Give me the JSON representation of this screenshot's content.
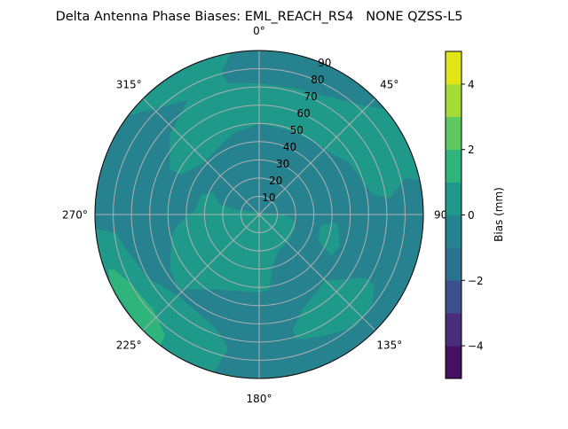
{
  "chart_data": {
    "type": "heatmap",
    "subtype": "polar filled contour",
    "title": "Delta Antenna Phase Biases: EML_REACH_RS4   NONE QZSS-L5",
    "angular_axis": {
      "direction": "clockwise",
      "zero_location": "top",
      "tick_labels": [
        "0°",
        "45°",
        "90°",
        "135°",
        "180°",
        "225°",
        "270°",
        "315°"
      ],
      "tick_values": [
        0,
        45,
        90,
        135,
        180,
        225,
        270,
        315
      ]
    },
    "radial_axis": {
      "range": [
        0,
        90
      ],
      "tick_values": [
        10,
        20,
        30,
        40,
        50,
        60,
        70,
        80,
        90
      ],
      "tick_labels": [
        "10",
        "20",
        "30",
        "40",
        "50",
        "60",
        "70",
        "80",
        "90"
      ],
      "label_angle": 22.5
    },
    "grid": true,
    "colorbar": {
      "label": "Bias (mm)",
      "levels": [
        -5,
        -4,
        -3,
        -2,
        -1,
        0,
        1,
        2,
        3,
        4,
        5
      ],
      "tick_values": [
        -4,
        -2,
        0,
        2,
        4
      ],
      "tick_labels": [
        "−4",
        "−2",
        "0",
        "2",
        "4"
      ],
      "colormap": "viridis",
      "band_colors": [
        "#45105f",
        "#472d7b",
        "#3b518b",
        "#2c718e",
        "#26828e",
        "#1f9a8a",
        "#2fb47c",
        "#5ec962",
        "#a5db36",
        "#e2e418"
      ]
    },
    "background_band": [
      -1,
      0
    ],
    "regions_note_units": "points are [azimuth_deg, radius]",
    "regions": [
      {
        "band": [
          0,
          1
        ],
        "points": [
          [
            307,
            90
          ],
          [
            320,
            90
          ],
          [
            335,
            90
          ],
          [
            350,
            90
          ],
          [
            347,
            84
          ],
          [
            345,
            80
          ],
          [
            347,
            74
          ],
          [
            0,
            72
          ],
          [
            16,
            72
          ],
          [
            33,
            76
          ],
          [
            45,
            84
          ],
          [
            50,
            90
          ],
          [
            60,
            90
          ],
          [
            70,
            90
          ],
          [
            78,
            90
          ],
          [
            76,
            83
          ],
          [
            83,
            72
          ],
          [
            80,
            63
          ],
          [
            60,
            57
          ],
          [
            50,
            52
          ],
          [
            37,
            50
          ],
          [
            20,
            49
          ],
          [
            0,
            50
          ],
          [
            353,
            48
          ],
          [
            343,
            47
          ],
          [
            329,
            43
          ],
          [
            313,
            41.5
          ],
          [
            297,
            48
          ],
          [
            297,
            55
          ],
          [
            312,
            66
          ],
          [
            328,
            74
          ],
          [
            308,
            89
          ]
        ]
      },
      {
        "band": [
          0,
          1
        ],
        "points": [
          [
            265,
            90
          ],
          [
            262.5,
            79
          ],
          [
            254.5,
            75
          ],
          [
            240,
            70
          ],
          [
            225,
            63
          ],
          [
            201,
            66.6
          ],
          [
            193,
            75.6
          ],
          [
            195,
            84.6
          ],
          [
            196,
            90
          ],
          [
            210,
            90
          ],
          [
            225,
            90
          ],
          [
            240,
            90
          ],
          [
            255,
            90
          ]
        ]
      },
      {
        "band": [
          1,
          2
        ],
        "points": [
          [
            249,
            85
          ],
          [
            242,
            80
          ],
          [
            228,
            78
          ],
          [
            218,
            84
          ],
          [
            217,
            90
          ],
          [
            230,
            90
          ],
          [
            245,
            90
          ],
          [
            250,
            88
          ]
        ]
      },
      {
        "band": [
          0,
          1
        ],
        "points": [
          [
            288.6,
            33.5
          ],
          [
            296,
            28
          ],
          [
            284.8,
            22.8
          ],
          [
            282,
            12.6
          ],
          [
            0,
            1
          ],
          [
            89,
            12
          ],
          [
            97,
            18.6
          ],
          [
            109.5,
            21.3
          ],
          [
            129,
            21.7
          ],
          [
            152.7,
            22.6
          ],
          [
            166.6,
            30.7
          ],
          [
            172.4,
            41.5
          ],
          [
            180,
            42.8
          ],
          [
            208,
            46.7
          ],
          [
            227.4,
            60.8
          ],
          [
            238.6,
            57.2
          ],
          [
            256,
            49.5
          ],
          [
            263,
            45
          ],
          [
            274.2,
            35.1
          ]
        ]
      },
      {
        "band": [
          0,
          1
        ],
        "points": [
          [
            99.2,
            34.3
          ],
          [
            96.3,
            43
          ],
          [
            110.8,
            47.5
          ],
          [
            119.7,
            45.5
          ],
          [
            114.1,
            35.3
          ]
        ]
      },
      {
        "band": [
          0,
          1
        ],
        "points": [
          [
            163.7,
            65.7
          ],
          [
            156,
            57.5
          ],
          [
            135,
            51.3
          ],
          [
            120.5,
            68.4
          ],
          [
            122.1,
            74.4
          ],
          [
            128.4,
            79.4
          ],
          [
            139.8,
            81.4
          ],
          [
            153.8,
            74.8
          ],
          [
            163.7,
            71.6
          ]
        ]
      }
    ]
  }
}
